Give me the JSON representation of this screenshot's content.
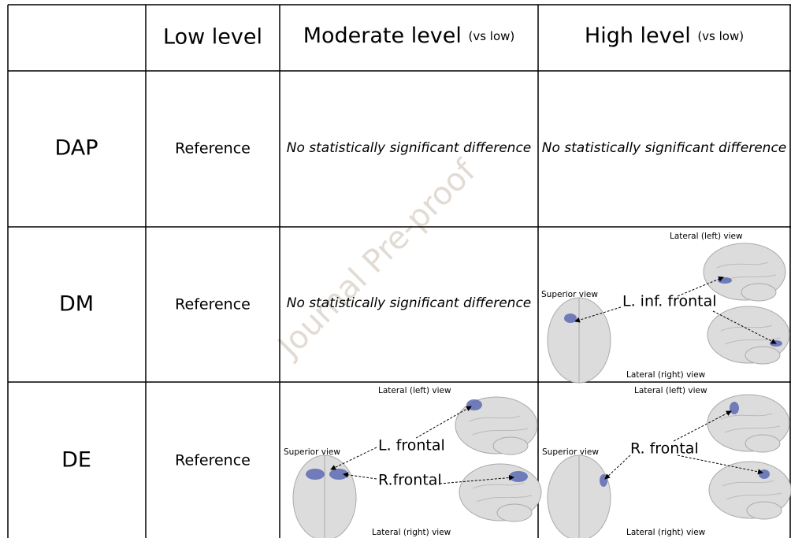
{
  "watermark": "Journal Pre-proof",
  "table": {
    "header": [
      {
        "title": "Low level"
      },
      {
        "title": "Moderate level",
        "note": "(vs low)"
      },
      {
        "title": "High level",
        "note": "(vs low)"
      }
    ],
    "rows": [
      {
        "label": "DAP",
        "cells": [
          {
            "text": "Reference"
          },
          {
            "text": "No statistically significant difference"
          },
          {
            "text": "No statistically significant difference"
          }
        ]
      },
      {
        "label": "DM",
        "cells": [
          {
            "text": "Reference"
          },
          {
            "text": "No statistically significant difference"
          },
          {
            "figure": {
              "top_view": "Lateral (left) view",
              "left_view": "Superior view",
              "regions": [
                "L. inf. frontal"
              ],
              "bottom_view": "Lateral (right) view"
            }
          }
        ]
      },
      {
        "label": "DE",
        "cells": [
          {
            "text": "Reference"
          },
          {
            "figure": {
              "top_view": "Lateral (left) view",
              "left_view": "Superior view",
              "regions": [
                "L. frontal",
                "R.frontal"
              ],
              "bottom_view": "Lateral (right) view"
            }
          },
          {
            "figure": {
              "top_view": "Lateral (left) view",
              "left_view": "Superior view",
              "regions": [
                "R. frontal"
              ],
              "bottom_view": "Lateral (right) view"
            }
          }
        ]
      }
    ]
  }
}
